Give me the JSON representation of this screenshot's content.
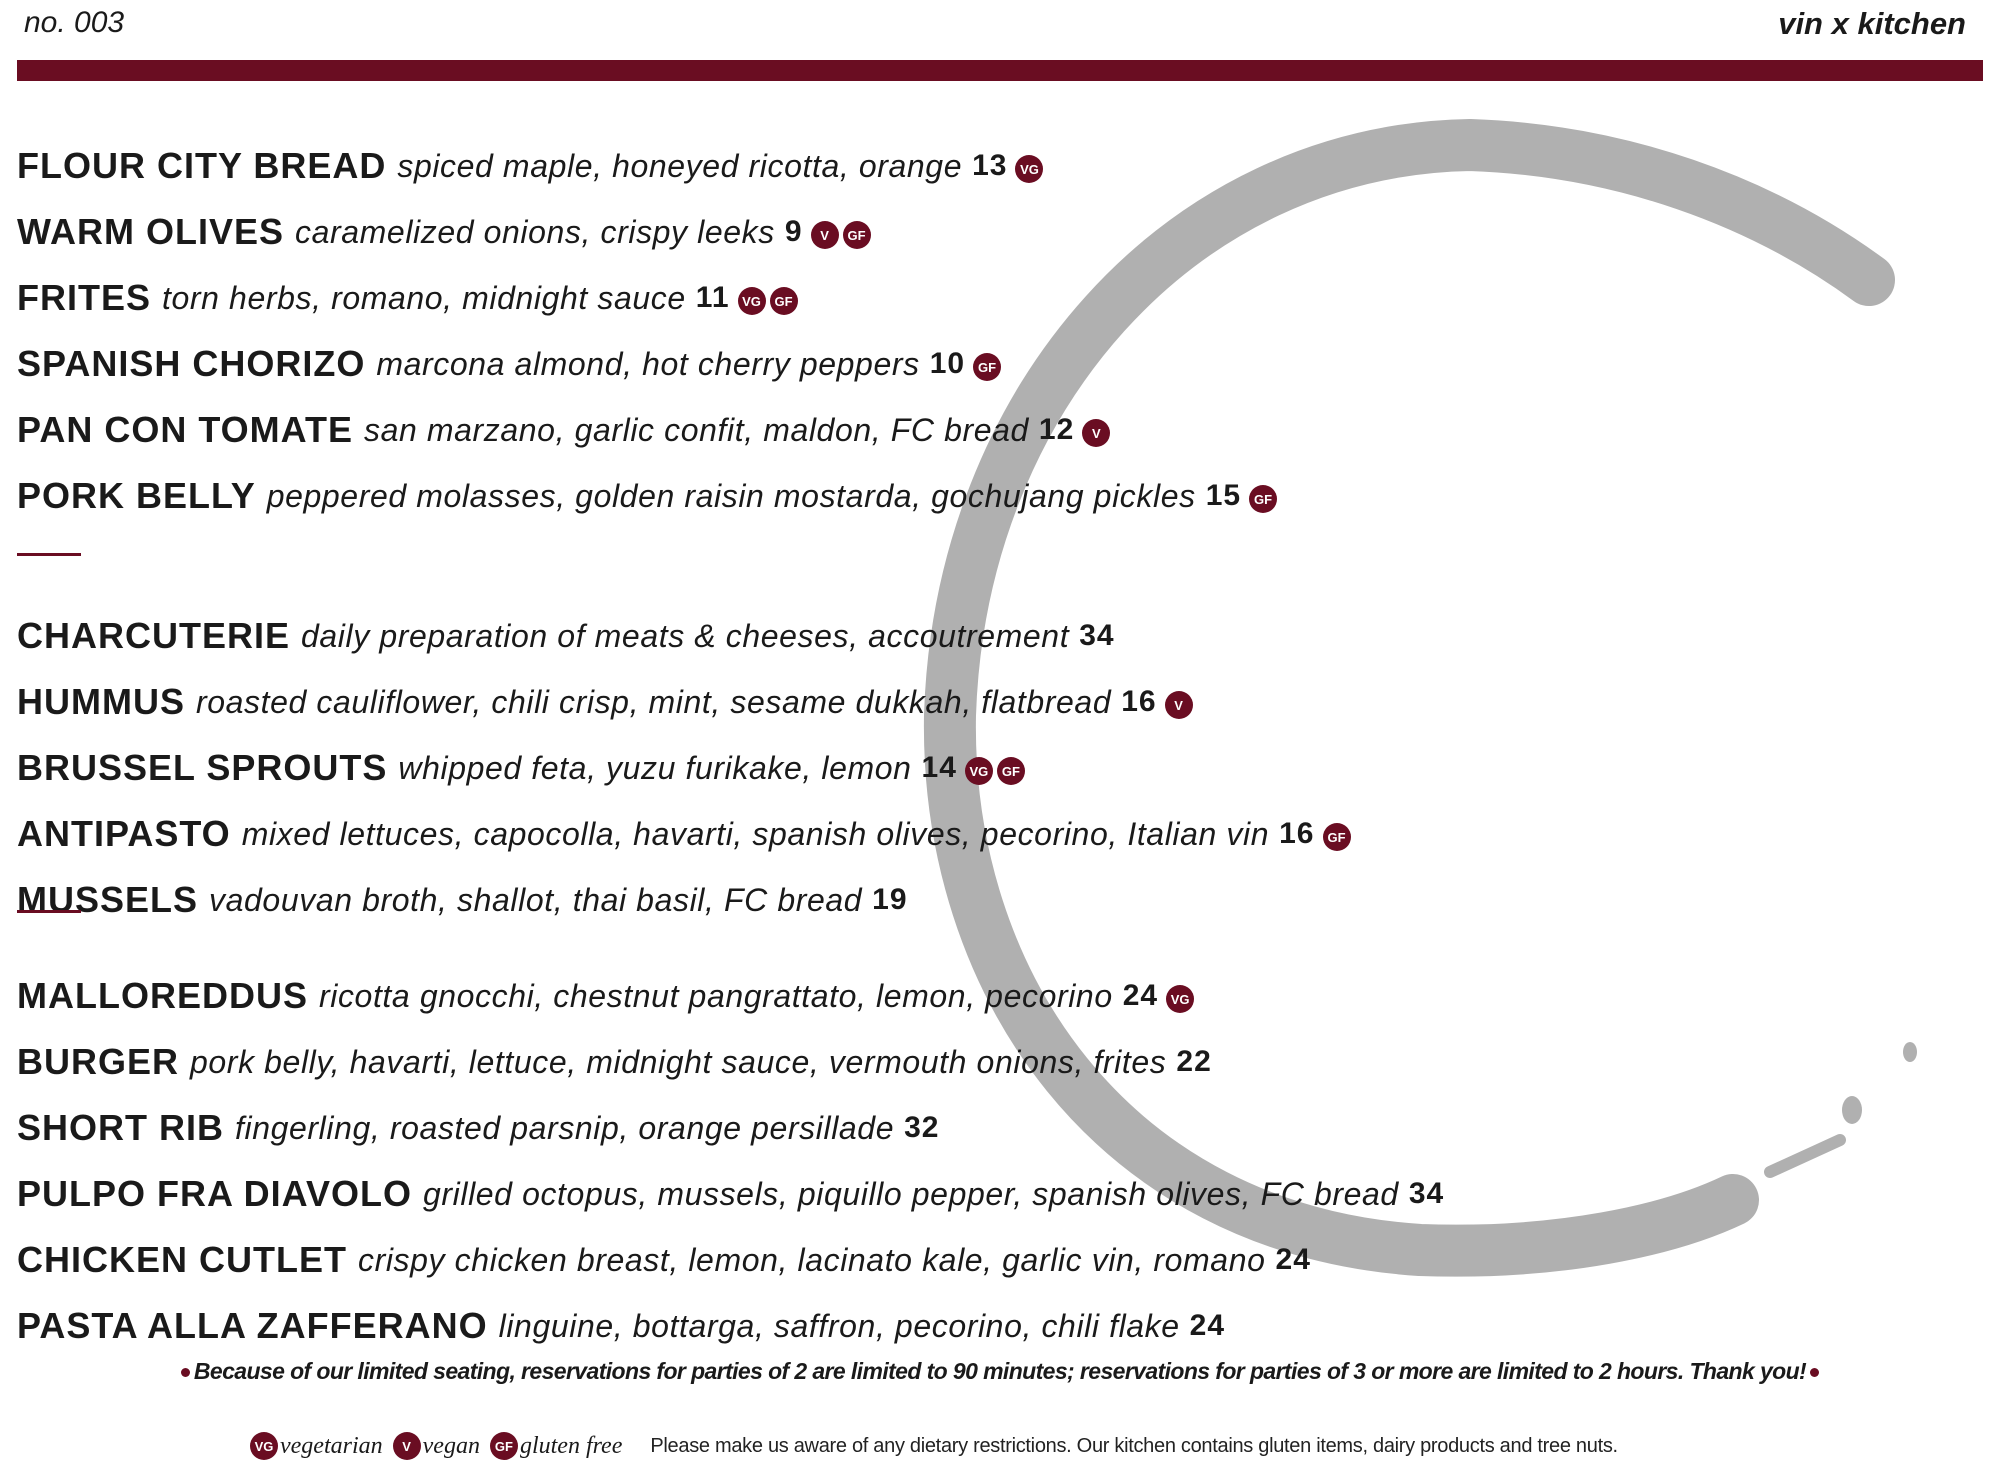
{
  "header": {
    "issue": "no. 003",
    "brand": "vin x kitchen"
  },
  "colors": {
    "accent": "#6a0d22",
    "ring": "#b0b0b0"
  },
  "groups": [
    [
      {
        "name": "FLOUR CITY BREAD",
        "desc": "spiced maple, honeyed ricotta, orange",
        "price": "13",
        "badges": [
          "VG"
        ]
      },
      {
        "name": "WARM OLIVES",
        "desc": "caramelized onions, crispy leeks",
        "price": "9",
        "badges": [
          "V",
          "GF"
        ]
      },
      {
        "name": "FRITES",
        "desc": "torn herbs, romano, midnight sauce",
        "price": "11",
        "badges": [
          "VG",
          "GF"
        ]
      },
      {
        "name": "SPANISH CHORIZO",
        "desc": "marcona almond, hot cherry peppers",
        "price": "10",
        "badges": [
          "GF"
        ]
      },
      {
        "name": "PAN CON TOMATE",
        "desc": "san marzano, garlic confit, maldon, FC bread",
        "price": "12",
        "badges": [
          "V"
        ]
      },
      {
        "name": "PORK BELLY",
        "desc": "peppered molasses, golden raisin mostarda, gochujang pickles",
        "price": "15",
        "badges": [
          "GF"
        ]
      }
    ],
    [
      {
        "name": "CHARCUTERIE",
        "desc": "daily preparation of meats & cheeses, accoutrement",
        "price": "34",
        "badges": []
      },
      {
        "name": "HUMMUS",
        "desc": "roasted cauliflower, chili crisp, mint, sesame dukkah, flatbread",
        "price": "16",
        "badges": [
          "V"
        ]
      },
      {
        "name": "BRUSSEL SPROUTS",
        "desc": "whipped feta, yuzu furikake, lemon",
        "price": "14",
        "badges": [
          "VG",
          "GF"
        ]
      },
      {
        "name": "ANTIPASTO",
        "desc": "mixed lettuces, capocolla, havarti, spanish olives, pecorino, Italian vin",
        "price": "16",
        "badges": [
          "GF"
        ]
      },
      {
        "name": "MUSSELS",
        "desc": "vadouvan broth, shallot, thai basil, FC bread",
        "price": "19",
        "badges": []
      }
    ],
    [
      {
        "name": "MALLOREDDUS",
        "desc": "ricotta gnocchi, chestnut pangrattato, lemon, pecorino",
        "price": "24",
        "badges": [
          "VG"
        ]
      },
      {
        "name": "BURGER",
        "desc": "pork belly, havarti, lettuce, midnight sauce, vermouth onions, frites",
        "price": "22",
        "badges": []
      },
      {
        "name": "SHORT RIB",
        "desc": "fingerling, roasted parsnip, orange persillade",
        "price": "32",
        "badges": []
      },
      {
        "name": "PULPO FRA DIAVOLO",
        "desc": "grilled octopus, mussels, piquillo pepper, spanish olives, FC bread",
        "price": "34",
        "badges": []
      },
      {
        "name": "CHICKEN CUTLET",
        "desc": "crispy chicken breast, lemon, lacinato kale, garlic vin, romano",
        "price": "24",
        "badges": []
      },
      {
        "name": "PASTA ALLA ZAFFERANO",
        "desc": "linguine, bottarga, saffron, pecorino, chili flake",
        "price": "24",
        "badges": []
      }
    ]
  ],
  "footer": {
    "reservation_note": "Because of our limited seating, reservations for parties of 2 are limited to 90 minutes; reservations for parties of 3 or more are limited to 2 hours. Thank you!",
    "legend": [
      {
        "badge": "VG",
        "label": "vegetarian"
      },
      {
        "badge": "V",
        "label": "vegan"
      },
      {
        "badge": "GF",
        "label": "gluten free"
      }
    ],
    "dietary_note": "Please make us aware of any dietary restrictions. Our kitchen contains gluten items, dairy products and tree nuts."
  }
}
